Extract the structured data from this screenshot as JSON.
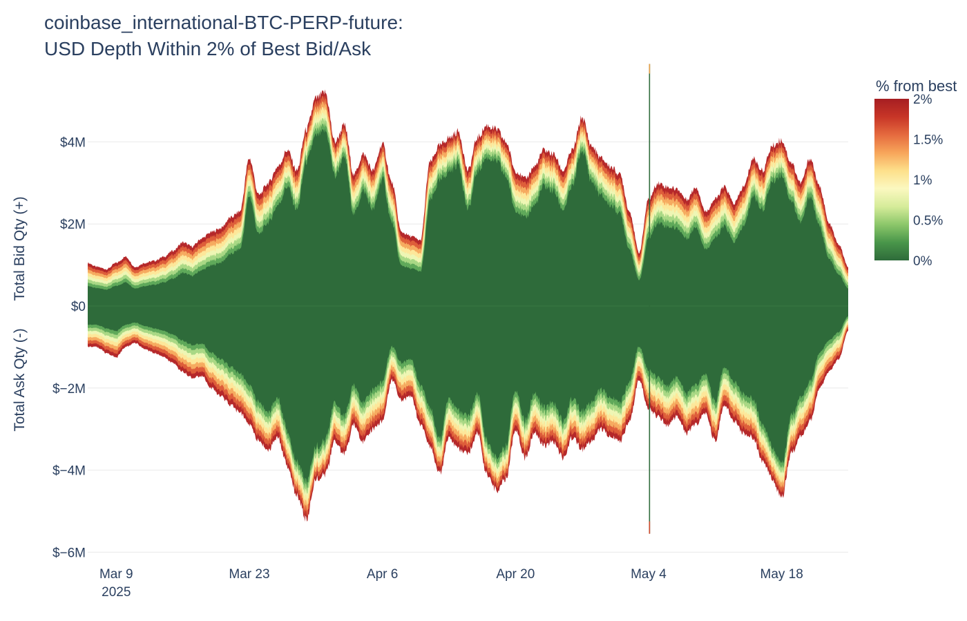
{
  "chart_data": {
    "type": "area",
    "title_line1": "coinbase_international-BTC-PERP-future:",
    "title_line2": "USD Depth Within 2% of Best Bid/Ask",
    "ylabel_bid": "Total Bid Qty (+)",
    "ylabel_ask": "Total Ask Qty (-)",
    "ylim": [
      -6.2,
      5.6
    ],
    "y_ticks": [
      {
        "value": 4,
        "label": "$4M"
      },
      {
        "value": 2,
        "label": "$2M"
      },
      {
        "value": 0,
        "label": "$0"
      },
      {
        "value": -2,
        "label": "$−2M"
      },
      {
        "value": -4,
        "label": "$−4M"
      },
      {
        "value": -6,
        "label": "$−6M"
      }
    ],
    "x_range_days": [
      0,
      80
    ],
    "x_ticks": [
      {
        "day": 3,
        "label": "Mar 9",
        "sublabel": "2025"
      },
      {
        "day": 17,
        "label": "Mar 23",
        "sublabel": ""
      },
      {
        "day": 31,
        "label": "Apr 6",
        "sublabel": ""
      },
      {
        "day": 45,
        "label": "Apr 20",
        "sublabel": ""
      },
      {
        "day": 59,
        "label": "May 4",
        "sublabel": ""
      },
      {
        "day": 73,
        "label": "May 18",
        "sublabel": ""
      }
    ],
    "colorbar": {
      "title": "% from best",
      "ticks": [
        {
          "value": 2,
          "label": "2%"
        },
        {
          "value": 1.5,
          "label": "1.5%"
        },
        {
          "value": 1,
          "label": "1%"
        },
        {
          "value": 0.5,
          "label": "0.5%"
        },
        {
          "value": 0,
          "label": "0%"
        }
      ],
      "colors": [
        "#2e6b3a",
        "#49964a",
        "#8cc76a",
        "#d6ec9a",
        "#fbf8c0",
        "#fde08b",
        "#f7a55a",
        "#e56a3e",
        "#c73527",
        "#a61e22"
      ]
    },
    "depth_bands_pct": [
      0.25,
      0.5,
      0.75,
      1.0,
      1.25,
      1.5,
      1.75,
      2.0
    ],
    "band_colors": [
      "#2e6b3a",
      "#5fa95a",
      "#a9d885",
      "#eef6b4",
      "#fde79a",
      "#f6ab60",
      "#de5e3a",
      "#b5282a"
    ],
    "bid_total_2pct_musd": [
      {
        "day": 0,
        "value": 1.05
      },
      {
        "day": 1,
        "value": 0.95
      },
      {
        "day": 2,
        "value": 0.9
      },
      {
        "day": 3,
        "value": 1.05
      },
      {
        "day": 4,
        "value": 1.2
      },
      {
        "day": 5,
        "value": 0.95
      },
      {
        "day": 6,
        "value": 1.05
      },
      {
        "day": 7,
        "value": 1.1
      },
      {
        "day": 8,
        "value": 1.2
      },
      {
        "day": 9,
        "value": 1.35
      },
      {
        "day": 10,
        "value": 1.55
      },
      {
        "day": 11,
        "value": 1.45
      },
      {
        "day": 12,
        "value": 1.65
      },
      {
        "day": 13,
        "value": 1.8
      },
      {
        "day": 14,
        "value": 1.9
      },
      {
        "day": 15,
        "value": 2.15
      },
      {
        "day": 16,
        "value": 2.3
      },
      {
        "day": 17,
        "value": 3.6
      },
      {
        "day": 18,
        "value": 2.7
      },
      {
        "day": 19,
        "value": 3.0
      },
      {
        "day": 20,
        "value": 3.4
      },
      {
        "day": 21,
        "value": 3.8
      },
      {
        "day": 22,
        "value": 3.3
      },
      {
        "day": 23,
        "value": 4.3
      },
      {
        "day": 24,
        "value": 5.05
      },
      {
        "day": 25,
        "value": 5.2
      },
      {
        "day": 26,
        "value": 4.0
      },
      {
        "day": 27,
        "value": 4.4
      },
      {
        "day": 28,
        "value": 3.2
      },
      {
        "day": 29,
        "value": 3.7
      },
      {
        "day": 30,
        "value": 3.3
      },
      {
        "day": 31,
        "value": 3.95
      },
      {
        "day": 32,
        "value": 3.0
      },
      {
        "day": 33,
        "value": 1.8
      },
      {
        "day": 34,
        "value": 1.7
      },
      {
        "day": 35,
        "value": 1.6
      },
      {
        "day": 36,
        "value": 3.5
      },
      {
        "day": 37,
        "value": 3.9
      },
      {
        "day": 38,
        "value": 4.1
      },
      {
        "day": 39,
        "value": 4.25
      },
      {
        "day": 40,
        "value": 3.3
      },
      {
        "day": 41,
        "value": 4.1
      },
      {
        "day": 42,
        "value": 4.4
      },
      {
        "day": 43,
        "value": 4.3
      },
      {
        "day": 44,
        "value": 4.0
      },
      {
        "day": 45,
        "value": 3.3
      },
      {
        "day": 46,
        "value": 3.1
      },
      {
        "day": 47,
        "value": 3.4
      },
      {
        "day": 48,
        "value": 3.8
      },
      {
        "day": 49,
        "value": 3.7
      },
      {
        "day": 50,
        "value": 3.3
      },
      {
        "day": 51,
        "value": 3.8
      },
      {
        "day": 52,
        "value": 4.6
      },
      {
        "day": 53,
        "value": 3.9
      },
      {
        "day": 54,
        "value": 3.6
      },
      {
        "day": 55,
        "value": 3.4
      },
      {
        "day": 56,
        "value": 3.2
      },
      {
        "day": 57,
        "value": 2.3
      },
      {
        "day": 58,
        "value": 1.3
      },
      {
        "day": 59,
        "value": 2.6
      },
      {
        "day": 60,
        "value": 3.0
      },
      {
        "day": 61,
        "value": 2.9
      },
      {
        "day": 62,
        "value": 2.85
      },
      {
        "day": 63,
        "value": 2.6
      },
      {
        "day": 64,
        "value": 2.9
      },
      {
        "day": 65,
        "value": 2.3
      },
      {
        "day": 66,
        "value": 2.6
      },
      {
        "day": 67,
        "value": 2.9
      },
      {
        "day": 68,
        "value": 2.5
      },
      {
        "day": 69,
        "value": 2.9
      },
      {
        "day": 70,
        "value": 3.6
      },
      {
        "day": 71,
        "value": 3.3
      },
      {
        "day": 72,
        "value": 3.9
      },
      {
        "day": 73,
        "value": 4.05
      },
      {
        "day": 74,
        "value": 3.5
      },
      {
        "day": 75,
        "value": 3.0
      },
      {
        "day": 76,
        "value": 3.6
      },
      {
        "day": 77,
        "value": 2.9
      },
      {
        "day": 78,
        "value": 2.0
      },
      {
        "day": 79,
        "value": 1.5
      },
      {
        "day": 80,
        "value": 0.95
      }
    ],
    "ask_total_2pct_musd": [
      {
        "day": 0,
        "value": -1.0
      },
      {
        "day": 1,
        "value": -1.0
      },
      {
        "day": 2,
        "value": -1.15
      },
      {
        "day": 3,
        "value": -1.25
      },
      {
        "day": 4,
        "value": -1.0
      },
      {
        "day": 5,
        "value": -0.9
      },
      {
        "day": 6,
        "value": -1.05
      },
      {
        "day": 7,
        "value": -1.15
      },
      {
        "day": 8,
        "value": -1.25
      },
      {
        "day": 9,
        "value": -1.4
      },
      {
        "day": 10,
        "value": -1.6
      },
      {
        "day": 11,
        "value": -1.75
      },
      {
        "day": 12,
        "value": -1.7
      },
      {
        "day": 13,
        "value": -2.0
      },
      {
        "day": 14,
        "value": -2.2
      },
      {
        "day": 15,
        "value": -2.4
      },
      {
        "day": 16,
        "value": -2.6
      },
      {
        "day": 17,
        "value": -2.9
      },
      {
        "day": 18,
        "value": -3.3
      },
      {
        "day": 19,
        "value": -3.5
      },
      {
        "day": 20,
        "value": -3.2
      },
      {
        "day": 21,
        "value": -3.9
      },
      {
        "day": 22,
        "value": -4.6
      },
      {
        "day": 23,
        "value": -5.2
      },
      {
        "day": 24,
        "value": -4.2
      },
      {
        "day": 25,
        "value": -4.1
      },
      {
        "day": 26,
        "value": -3.3
      },
      {
        "day": 27,
        "value": -3.6
      },
      {
        "day": 28,
        "value": -2.9
      },
      {
        "day": 29,
        "value": -3.3
      },
      {
        "day": 30,
        "value": -3.0
      },
      {
        "day": 31,
        "value": -2.8
      },
      {
        "day": 32,
        "value": -1.8
      },
      {
        "day": 33,
        "value": -2.3
      },
      {
        "day": 34,
        "value": -2.2
      },
      {
        "day": 35,
        "value": -2.9
      },
      {
        "day": 36,
        "value": -3.4
      },
      {
        "day": 37,
        "value": -4.1
      },
      {
        "day": 38,
        "value": -3.2
      },
      {
        "day": 39,
        "value": -3.5
      },
      {
        "day": 40,
        "value": -3.6
      },
      {
        "day": 41,
        "value": -3.1
      },
      {
        "day": 42,
        "value": -4.1
      },
      {
        "day": 43,
        "value": -4.5
      },
      {
        "day": 44,
        "value": -4.2
      },
      {
        "day": 45,
        "value": -3.0
      },
      {
        "day": 46,
        "value": -3.7
      },
      {
        "day": 47,
        "value": -3.1
      },
      {
        "day": 48,
        "value": -3.4
      },
      {
        "day": 49,
        "value": -3.3
      },
      {
        "day": 50,
        "value": -3.7
      },
      {
        "day": 51,
        "value": -3.2
      },
      {
        "day": 52,
        "value": -3.5
      },
      {
        "day": 53,
        "value": -3.3
      },
      {
        "day": 54,
        "value": -3.0
      },
      {
        "day": 55,
        "value": -3.2
      },
      {
        "day": 56,
        "value": -3.3
      },
      {
        "day": 57,
        "value": -2.8
      },
      {
        "day": 58,
        "value": -1.8
      },
      {
        "day": 59,
        "value": -2.5
      },
      {
        "day": 60,
        "value": -2.7
      },
      {
        "day": 61,
        "value": -2.9
      },
      {
        "day": 62,
        "value": -2.7
      },
      {
        "day": 63,
        "value": -3.1
      },
      {
        "day": 64,
        "value": -2.9
      },
      {
        "day": 65,
        "value": -2.6
      },
      {
        "day": 66,
        "value": -3.3
      },
      {
        "day": 67,
        "value": -2.4
      },
      {
        "day": 68,
        "value": -2.8
      },
      {
        "day": 69,
        "value": -3.1
      },
      {
        "day": 70,
        "value": -3.2
      },
      {
        "day": 71,
        "value": -3.8
      },
      {
        "day": 72,
        "value": -4.2
      },
      {
        "day": 73,
        "value": -4.7
      },
      {
        "day": 74,
        "value": -3.6
      },
      {
        "day": 75,
        "value": -3.2
      },
      {
        "day": 76,
        "value": -2.8
      },
      {
        "day": 77,
        "value": -2.0
      },
      {
        "day": 78,
        "value": -1.6
      },
      {
        "day": 79,
        "value": -1.3
      },
      {
        "day": 80,
        "value": -0.6
      }
    ],
    "spike": {
      "day": 59.1,
      "bid_musd": 5.9,
      "ask_musd": -5.55
    }
  }
}
